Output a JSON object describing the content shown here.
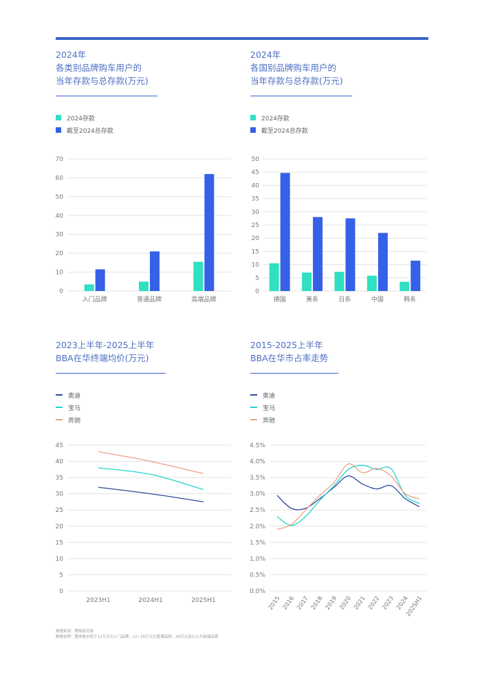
{
  "colors": {
    "accent": "#3a63c9",
    "teal": "#2fe0c1",
    "blue": "#3560e8",
    "audi": "#2a4a9a",
    "bmw": "#22d4cc",
    "benz": "#e8a488",
    "grid": "#e3e3e3",
    "title": "#4c6fc4"
  },
  "panels": {
    "p1": {
      "title": "2024年\n各类别品牌购车用户的\n当年存款与总存款(万元)"
    },
    "p2": {
      "title": "2024年\n各国别品牌购车用户的\n当年存款与总存款(万元)"
    },
    "p3": {
      "title": "2023上半年-2025上半年\nBBA在华终端均价(万元)"
    },
    "p4": {
      "title": "2015-2025上半年\nBBA在华市占率走势"
    }
  },
  "legend_bar": [
    "2024存款",
    "截至2024总存款"
  ],
  "legend_line": [
    "奥迪",
    "宝马",
    "奔驰"
  ],
  "footnotes": {
    "source": "数据来源：腾易研究院",
    "explain": "数据说明：整体售价低于12万元为入门品牌，12~28万元为普通品牌，28万元及以上为高端品牌"
  },
  "chart_data": [
    {
      "type": "bar",
      "categories": [
        "入门品牌",
        "普通品牌",
        "高端品牌"
      ],
      "series": [
        {
          "name": "2024存款",
          "values": [
            3.5,
            5,
            15.5
          ]
        },
        {
          "name": "截至2024总存款",
          "values": [
            11.5,
            21,
            62
          ]
        }
      ],
      "ylim": [
        0,
        70
      ],
      "yticks": [
        0,
        10,
        20,
        30,
        40,
        50,
        60,
        70
      ]
    },
    {
      "type": "bar",
      "categories": [
        "德国",
        "美系",
        "日系",
        "中国",
        "韩系"
      ],
      "series": [
        {
          "name": "2024存款",
          "values": [
            10.5,
            7,
            7.3,
            5.8,
            3.5
          ]
        },
        {
          "name": "截至2024总存款",
          "values": [
            44.7,
            28,
            27.5,
            22,
            11.5
          ]
        }
      ],
      "ylim": [
        0,
        50
      ],
      "yticks": [
        0,
        5,
        10,
        15,
        20,
        25,
        30,
        35,
        40,
        45,
        50
      ]
    },
    {
      "type": "line",
      "x": [
        "2023H1",
        "2024H1",
        "2025H1"
      ],
      "series": [
        {
          "name": "奥迪",
          "values": [
            32,
            30,
            27.5
          ]
        },
        {
          "name": "宝马",
          "values": [
            38,
            36,
            31.3
          ]
        },
        {
          "name": "奔驰",
          "values": [
            43,
            40,
            36.2
          ]
        }
      ],
      "ylim": [
        0,
        45
      ],
      "yticks": [
        0,
        5,
        10,
        15,
        20,
        25,
        30,
        35,
        40,
        45
      ]
    },
    {
      "type": "line",
      "x": [
        "2015",
        "2016",
        "2017",
        "2018",
        "2019",
        "2020",
        "2021",
        "2022",
        "2023",
        "2024",
        "2025H1"
      ],
      "series": [
        {
          "name": "奥迪",
          "values": [
            2.95,
            2.55,
            2.55,
            2.85,
            3.2,
            3.55,
            3.3,
            3.15,
            3.25,
            2.85,
            2.6
          ]
        },
        {
          "name": "宝马",
          "values": [
            2.3,
            2.02,
            2.3,
            2.8,
            3.25,
            3.75,
            3.88,
            3.75,
            3.78,
            2.95,
            2.7
          ]
        },
        {
          "name": "奔驰",
          "values": [
            1.9,
            2.05,
            2.5,
            2.95,
            3.35,
            3.92,
            3.65,
            3.78,
            3.55,
            3.0,
            2.85
          ]
        }
      ],
      "ylim": [
        0,
        4.5
      ],
      "yticks": [
        "0.0%",
        "0.5%",
        "1.0%",
        "1.5%",
        "2.0%",
        "2.5%",
        "3.0%",
        "3.5%",
        "4.0%",
        "4.5%"
      ]
    }
  ]
}
